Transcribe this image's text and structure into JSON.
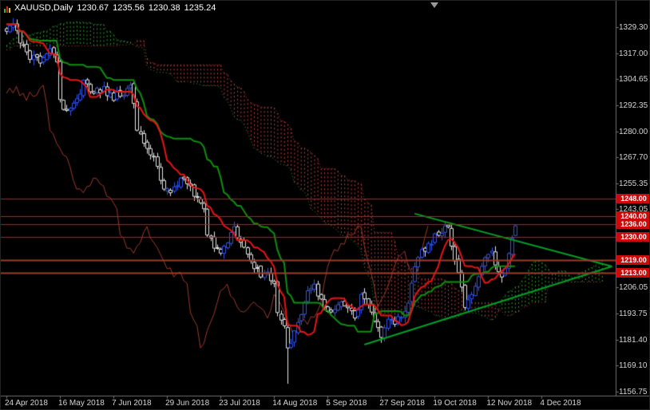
{
  "title": {
    "symbol_period": "XAUUSD,Daily",
    "open": "1230.67",
    "high": "1235.56",
    "low": "1230.38",
    "close": "1235.24"
  },
  "colors": {
    "background": "#000000",
    "axis_text": "#d6d6d6",
    "axis_line": "#6f6f6f",
    "bull": "#3355ee",
    "bear": "#e8e8e8",
    "tenkan": "#e81414",
    "kijun": "#0f8f0f",
    "chikou": "#9c3a2c",
    "cloud_bull": "#2f9e2f",
    "cloud_bear": "#c04040",
    "trendline": "#00a028",
    "tag_bg": "#cc0a0a",
    "tag_text": "#ffffff",
    "marker": "#9a9a9a"
  },
  "markers": {
    "shift_marker_bar": 128
  },
  "chart_data": {
    "type": "candlestick",
    "symbol": "XAUUSD",
    "timeframe": "Daily",
    "title": "XAUUSD,Daily",
    "last_ohlc": {
      "open": 1230.67,
      "high": 1235.56,
      "low": 1230.38,
      "close": 1235.24
    },
    "y_axis": {
      "min": 1156.75,
      "max": 1329.3,
      "ticks": [
        {
          "label": "1329.30",
          "price": 1329.3
        },
        {
          "label": "1317.00",
          "price": 1317.0
        },
        {
          "label": "1304.65",
          "price": 1304.65
        },
        {
          "label": "1292.35",
          "price": 1292.35
        },
        {
          "label": "1280.00",
          "price": 1280.0
        },
        {
          "label": "1267.70",
          "price": 1267.7
        },
        {
          "label": "1255.35",
          "price": 1255.35
        },
        {
          "label": "1243.05",
          "price": 1243.05
        },
        {
          "label": "1230.70",
          "price": 1230.7
        },
        {
          "label": "1218.40",
          "price": 1218.4
        },
        {
          "label": "1206.05",
          "price": 1206.05
        },
        {
          "label": "1193.75",
          "price": 1193.75
        },
        {
          "label": "1181.40",
          "price": 1181.4
        },
        {
          "label": "1169.10",
          "price": 1169.1
        },
        {
          "label": "1156.75",
          "price": 1156.75
        }
      ]
    },
    "x_axis": {
      "bars_per_tick": 16,
      "ticks": [
        {
          "label": "24 Apr 2018",
          "bar": 0
        },
        {
          "label": "16 May 2018",
          "bar": 16
        },
        {
          "label": "7 Jun 2018",
          "bar": 32
        },
        {
          "label": "29 Jun 2018",
          "bar": 48
        },
        {
          "label": "23 Jul 2018",
          "bar": 64
        },
        {
          "label": "14 Aug 2018",
          "bar": 80
        },
        {
          "label": "5 Sep 2018",
          "bar": 96
        },
        {
          "label": "27 Sep 2018",
          "bar": 112
        },
        {
          "label": "19 Oct 2018",
          "bar": 128
        },
        {
          "label": "12 Nov 2018",
          "bar": 144
        },
        {
          "label": "4 Dec 2018",
          "bar": 160
        }
      ]
    },
    "indicator": {
      "name": "Ichimoku Kinko Hyo",
      "tenkan": 9,
      "kijun": 26,
      "senkou_b": 52,
      "shift": 26
    },
    "horizontal_lines": [
      {
        "price": 1248.0,
        "label": "1248.00",
        "color": "#d41414",
        "width": 1
      },
      {
        "price": 1240.0,
        "label": "1240.00",
        "color": "#d41414",
        "width": 1
      },
      {
        "price": 1236.0,
        "label": "1236.00",
        "color": "#d41414",
        "width": 1
      },
      {
        "price": 1230.0,
        "label": "1230.00",
        "color": "#d41414",
        "width": 1
      },
      {
        "price": 1219.0,
        "label": "1219.00",
        "color": "#a03a28",
        "width": 2
      },
      {
        "price": 1213.0,
        "label": "1213.00",
        "color": "#a03a28",
        "width": 2
      }
    ],
    "trendlines": [
      {
        "from_bar": 107,
        "from_price": 1179,
        "to_bar": 181,
        "to_price": 1216
      },
      {
        "from_bar": 122,
        "from_price": 1241,
        "to_bar": 181,
        "to_price": 1216
      }
    ],
    "close_estimates": [
      [
        -60,
        1322
      ],
      [
        -50,
        1312
      ],
      [
        -42,
        1308
      ],
      [
        -34,
        1320
      ],
      [
        -26,
        1331
      ],
      [
        -18,
        1341
      ],
      [
        -12,
        1343
      ],
      [
        -6,
        1336
      ],
      [
        0,
        1329
      ],
      [
        2,
        1332
      ],
      [
        4,
        1322
      ],
      [
        7,
        1315
      ],
      [
        10,
        1313
      ],
      [
        13,
        1319
      ],
      [
        15,
        1314
      ],
      [
        16,
        1293
      ],
      [
        18,
        1290
      ],
      [
        21,
        1295
      ],
      [
        23,
        1303
      ],
      [
        26,
        1298
      ],
      [
        29,
        1300
      ],
      [
        32,
        1296
      ],
      [
        35,
        1298
      ],
      [
        37,
        1302
      ],
      [
        38,
        1295
      ],
      [
        39,
        1281
      ],
      [
        41,
        1275
      ],
      [
        43,
        1270
      ],
      [
        45,
        1262
      ],
      [
        47,
        1254
      ],
      [
        49,
        1251
      ],
      [
        51,
        1255
      ],
      [
        53,
        1258
      ],
      [
        55,
        1253
      ],
      [
        57,
        1248
      ],
      [
        59,
        1242
      ],
      [
        60,
        1232
      ],
      [
        62,
        1224
      ],
      [
        64,
        1223
      ],
      [
        66,
        1228
      ],
      [
        68,
        1233
      ],
      [
        70,
        1228
      ],
      [
        72,
        1221
      ],
      [
        74,
        1216
      ],
      [
        76,
        1212
      ],
      [
        78,
        1213
      ],
      [
        80,
        1207
      ],
      [
        81,
        1196
      ],
      [
        83,
        1188
      ],
      [
        84,
        1176
      ],
      [
        85,
        1180
      ],
      [
        86,
        1184
      ],
      [
        88,
        1192
      ],
      [
        90,
        1203
      ],
      [
        92,
        1206
      ],
      [
        94,
        1200
      ],
      [
        96,
        1195
      ],
      [
        98,
        1197
      ],
      [
        100,
        1200
      ],
      [
        102,
        1196
      ],
      [
        104,
        1193
      ],
      [
        106,
        1201
      ],
      [
        108,
        1198
      ],
      [
        110,
        1192
      ],
      [
        112,
        1184
      ],
      [
        114,
        1191
      ],
      [
        116,
        1188
      ],
      [
        118,
        1193
      ],
      [
        120,
        1197
      ],
      [
        122,
        1216
      ],
      [
        124,
        1223
      ],
      [
        126,
        1227
      ],
      [
        128,
        1230
      ],
      [
        130,
        1232
      ],
      [
        132,
        1235
      ],
      [
        134,
        1220
      ],
      [
        136,
        1205
      ],
      [
        137,
        1197
      ],
      [
        139,
        1201
      ],
      [
        141,
        1210
      ],
      [
        143,
        1219
      ],
      [
        145,
        1223
      ],
      [
        146,
        1215
      ],
      [
        148,
        1212
      ],
      [
        150,
        1221
      ],
      [
        151,
        1229
      ],
      [
        152,
        1235.24
      ]
    ]
  }
}
